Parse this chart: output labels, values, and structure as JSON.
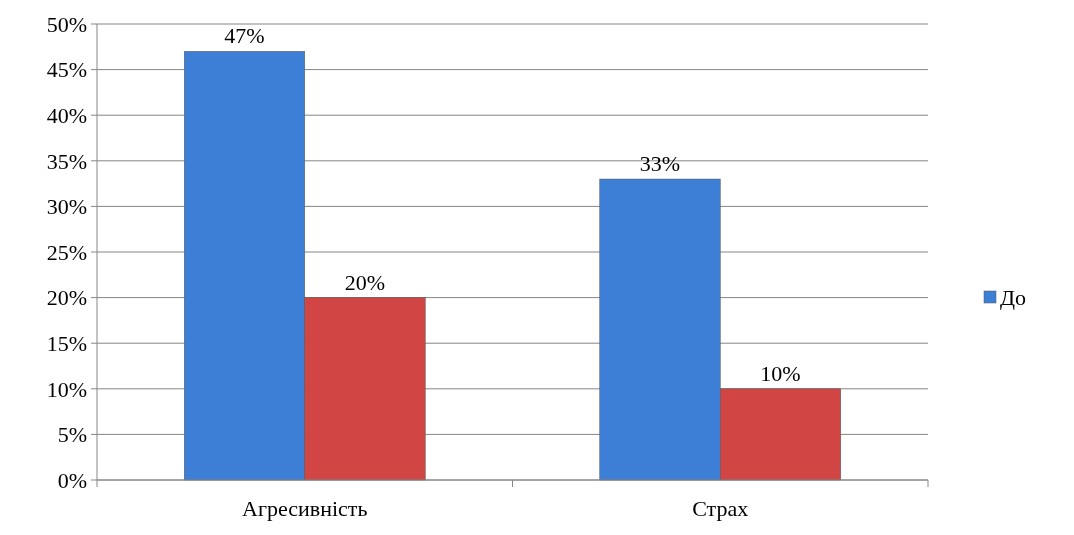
{
  "chart_data": {
    "type": "bar",
    "categories": [
      "Агресивність",
      "Страх"
    ],
    "series": [
      {
        "name": "До",
        "color": "#3d7fd6",
        "values": [
          47,
          33
        ],
        "value_labels": [
          "47%",
          "33%"
        ]
      },
      {
        "color": "#d24545",
        "values": [
          20,
          10
        ],
        "value_labels": [
          "20%",
          "10%"
        ]
      }
    ],
    "ylim": [
      0,
      50
    ],
    "yticks": [
      {
        "value": 0,
        "label": "0%"
      },
      {
        "value": 5,
        "label": "5%"
      },
      {
        "value": 10,
        "label": "10%"
      },
      {
        "value": 15,
        "label": "15%"
      },
      {
        "value": 20,
        "label": "20%"
      },
      {
        "value": 25,
        "label": "25%"
      },
      {
        "value": 30,
        "label": "30%"
      },
      {
        "value": 35,
        "label": "35%"
      },
      {
        "value": 40,
        "label": "40%"
      },
      {
        "value": 45,
        "label": "45%"
      },
      {
        "value": 50,
        "label": "50%"
      }
    ],
    "grid": "y",
    "legend": "right"
  }
}
